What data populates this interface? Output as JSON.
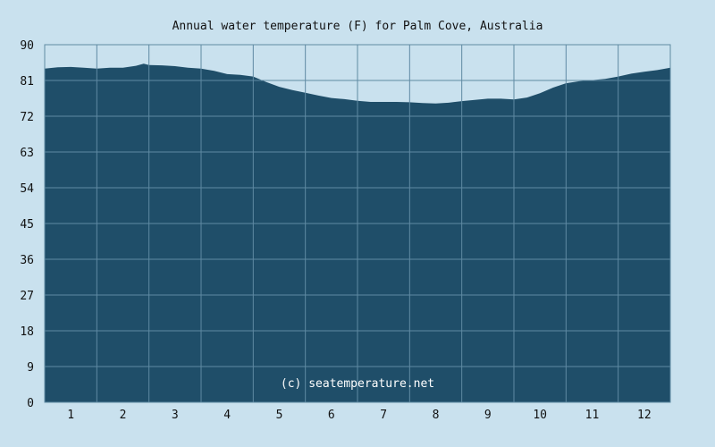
{
  "chart_data": {
    "type": "area",
    "title": "Annual water temperature (F) for Palm Cove, Australia",
    "xlabel": "",
    "ylabel": "",
    "x_ticks": [
      "1",
      "2",
      "3",
      "4",
      "5",
      "6",
      "7",
      "8",
      "9",
      "10",
      "11",
      "12"
    ],
    "y_ticks": [
      "0",
      "9",
      "18",
      "27",
      "36",
      "45",
      "54",
      "63",
      "72",
      "81",
      "90"
    ],
    "xlim": [
      0.5,
      12.5
    ],
    "ylim": [
      0,
      90
    ],
    "grid": true,
    "watermark": "(c) seatemperature.net",
    "colors": {
      "background": "#c9e1ee",
      "fill": "#1f4e69",
      "grid": "#5f8aa3"
    },
    "series": [
      {
        "x": [
          0.5,
          0.75,
          1.0,
          1.25,
          1.5,
          1.75,
          2.0,
          2.25,
          2.4,
          2.5,
          2.75,
          3.0,
          3.25,
          3.5,
          3.75,
          4.0,
          4.25,
          4.5,
          4.75,
          5.0,
          5.25,
          5.5,
          5.75,
          6.0,
          6.25,
          6.5,
          6.75,
          7.0,
          7.25,
          7.5,
          7.75,
          8.0,
          8.25,
          8.5,
          8.75,
          9.0,
          9.25,
          9.5,
          9.75,
          10.0,
          10.25,
          10.5,
          10.75,
          11.0,
          11.25,
          11.5,
          11.75,
          12.0,
          12.25,
          12.5
        ],
        "values": [
          84.0,
          84.3,
          84.4,
          84.2,
          84.0,
          84.2,
          84.2,
          84.7,
          85.2,
          84.9,
          84.8,
          84.6,
          84.2,
          84.0,
          83.4,
          82.6,
          82.4,
          82.0,
          80.6,
          79.4,
          78.6,
          77.9,
          77.2,
          76.6,
          76.3,
          75.9,
          75.6,
          75.6,
          75.6,
          75.5,
          75.3,
          75.2,
          75.4,
          75.8,
          76.1,
          76.4,
          76.4,
          76.2,
          76.7,
          77.8,
          79.2,
          80.3,
          80.8,
          81.1,
          81.4,
          82.0,
          82.7,
          83.2,
          83.6,
          84.2
        ]
      }
    ]
  }
}
